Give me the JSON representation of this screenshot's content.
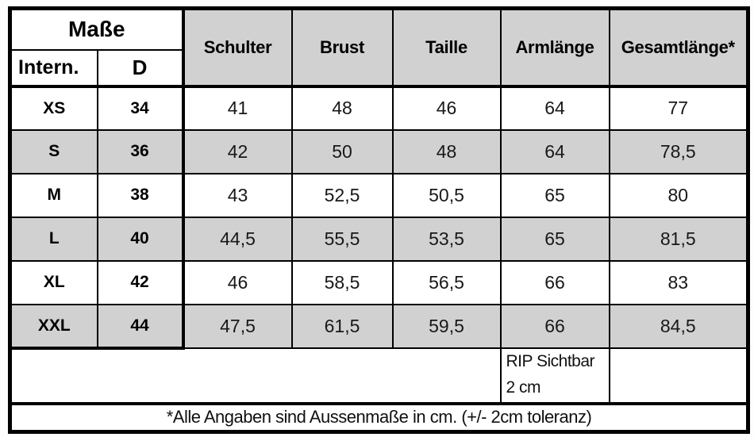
{
  "table": {
    "corner": {
      "title": "Maße",
      "sub_left": "Intern.",
      "sub_right": "D"
    },
    "columns": [
      "Schulter",
      "Brust",
      "Taille",
      "Armlänge",
      "Gesamtlänge*"
    ],
    "rows": [
      {
        "intl": "XS",
        "d": "34",
        "values": [
          "41",
          "48",
          "46",
          "64",
          "77"
        ]
      },
      {
        "intl": "S",
        "d": "36",
        "values": [
          "42",
          "50",
          "48",
          "64",
          "78,5"
        ]
      },
      {
        "intl": "M",
        "d": "38",
        "values": [
          "43",
          "52,5",
          "50,5",
          "65",
          "80"
        ]
      },
      {
        "intl": "L",
        "d": "40",
        "values": [
          "44,5",
          "55,5",
          "53,5",
          "65",
          "81,5"
        ]
      },
      {
        "intl": "XL",
        "d": "42",
        "values": [
          "46",
          "58,5",
          "56,5",
          "66",
          "83"
        ]
      },
      {
        "intl": "XXL",
        "d": "44",
        "values": [
          "47,5",
          "61,5",
          "59,5",
          "66",
          "84,5"
        ]
      }
    ],
    "note_row": {
      "line1": "RIP Sichtbar",
      "line2": "2 cm"
    },
    "footer": "*Alle Angaben sind Aussenmaße in cm. (+/- 2cm toleranz)"
  },
  "colors": {
    "stripe_gray": "#d1d1d1",
    "header_gray": "#d1d1d1",
    "border_black": "#000000",
    "background": "#fdfdfd"
  },
  "chart_data": {
    "type": "table",
    "title": "Maße",
    "columns": [
      "Intern.",
      "D",
      "Schulter",
      "Brust",
      "Taille",
      "Armlänge",
      "Gesamtlänge*"
    ],
    "rows": [
      [
        "XS",
        34,
        41,
        48,
        46,
        64,
        77
      ],
      [
        "S",
        36,
        42,
        50,
        48,
        64,
        78.5
      ],
      [
        "M",
        38,
        43,
        52.5,
        50.5,
        65,
        80
      ],
      [
        "L",
        40,
        44.5,
        55.5,
        53.5,
        65,
        81.5
      ],
      [
        "XL",
        42,
        46,
        58.5,
        56.5,
        66,
        83
      ],
      [
        "XXL",
        44,
        47.5,
        61.5,
        59.5,
        66,
        84.5
      ]
    ],
    "annotations": [
      "RIP Sichtbar 2 cm (Armlänge column)",
      "*Alle Angaben sind Aussenmaße in cm. (+/- 2cm toleranz)"
    ],
    "units": "cm"
  }
}
